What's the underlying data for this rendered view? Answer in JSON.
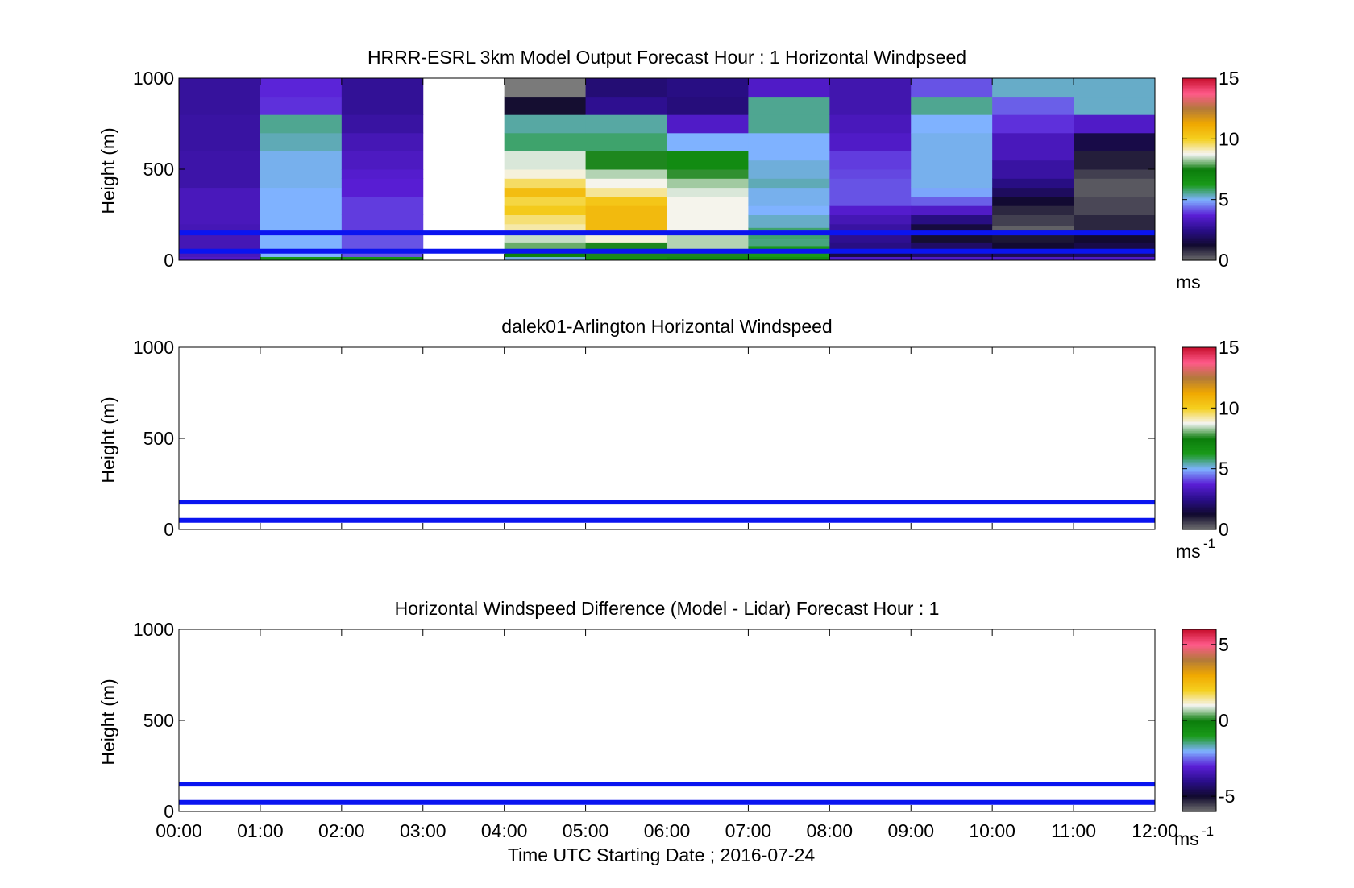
{
  "chart_data": [
    {
      "type": "heatmap",
      "title": "HRRR-ESRL 3km Model Output   Forecast Hour : 1 Horizontal Windpseed",
      "ylabel": "Height (m)",
      "ylim": [
        0,
        1000
      ],
      "yticks": [
        "0",
        "500",
        "1000"
      ],
      "xlim": [
        0,
        12
      ],
      "colorbar": {
        "ticks": [
          "0",
          "5",
          "10",
          "15"
        ],
        "vmin": 0,
        "vmax": 15,
        "unit": "ms"
      },
      "reference_lines_m": [
        150,
        50
      ],
      "cells": [
        {
          "t0": 0,
          "t1": 1,
          "h0": 0,
          "h1": 20,
          "v": 3.5
        },
        {
          "t0": 0,
          "t1": 1,
          "h0": 20,
          "h1": 50,
          "v": 3.3
        },
        {
          "t0": 0,
          "t1": 1,
          "h0": 50,
          "h1": 200,
          "v": 3.2
        },
        {
          "t0": 0,
          "t1": 1,
          "h0": 200,
          "h1": 400,
          "v": 3.3
        },
        {
          "t0": 0,
          "t1": 1,
          "h0": 400,
          "h1": 600,
          "v": 3.0
        },
        {
          "t0": 0,
          "t1": 1,
          "h0": 600,
          "h1": 800,
          "v": 2.9
        },
        {
          "t0": 0,
          "t1": 1,
          "h0": 800,
          "h1": 1000,
          "v": 2.8
        },
        {
          "t0": 1,
          "t1": 2,
          "h0": 0,
          "h1": 20,
          "v": 6.4
        },
        {
          "t0": 1,
          "t1": 2,
          "h0": 20,
          "h1": 400,
          "v": 5.0
        },
        {
          "t0": 1,
          "t1": 2,
          "h0": 400,
          "h1": 600,
          "v": 5.1
        },
        {
          "t0": 1,
          "t1": 2,
          "h0": 600,
          "h1": 700,
          "v": 5.4
        },
        {
          "t0": 1,
          "t1": 2,
          "h0": 700,
          "h1": 800,
          "v": 5.6
        },
        {
          "t0": 1,
          "t1": 2,
          "h0": 800,
          "h1": 900,
          "v": 3.9
        },
        {
          "t0": 1,
          "t1": 2,
          "h0": 900,
          "h1": 1000,
          "v": 3.8
        },
        {
          "t0": 2,
          "t1": 3,
          "h0": 0,
          "h1": 20,
          "v": 6.5
        },
        {
          "t0": 2,
          "t1": 3,
          "h0": 20,
          "h1": 150,
          "v": 4.2
        },
        {
          "t0": 2,
          "t1": 3,
          "h0": 150,
          "h1": 250,
          "v": 4.0
        },
        {
          "t0": 2,
          "t1": 3,
          "h0": 250,
          "h1": 350,
          "v": 4.0
        },
        {
          "t0": 2,
          "t1": 3,
          "h0": 350,
          "h1": 450,
          "v": 3.7
        },
        {
          "t0": 2,
          "t1": 3,
          "h0": 450,
          "h1": 500,
          "v": 3.6
        },
        {
          "t0": 2,
          "t1": 3,
          "h0": 500,
          "h1": 600,
          "v": 3.4
        },
        {
          "t0": 2,
          "t1": 3,
          "h0": 600,
          "h1": 700,
          "v": 3.2
        },
        {
          "t0": 2,
          "t1": 3,
          "h0": 700,
          "h1": 800,
          "v": 2.9
        },
        {
          "t0": 2,
          "t1": 3,
          "h0": 800,
          "h1": 1000,
          "v": 2.7
        },
        {
          "t0": 4,
          "t1": 5,
          "h0": 0,
          "h1": 20,
          "v": 5.2
        },
        {
          "t0": 4,
          "t1": 5,
          "h0": 20,
          "h1": 50,
          "v": 7.3
        },
        {
          "t0": 4,
          "t1": 5,
          "h0": 50,
          "h1": 100,
          "v": 8.0
        },
        {
          "t0": 4,
          "t1": 5,
          "h0": 100,
          "h1": 150,
          "v": 8.5
        },
        {
          "t0": 4,
          "t1": 5,
          "h0": 150,
          "h1": 200,
          "v": 9.2
        },
        {
          "t0": 4,
          "t1": 5,
          "h0": 200,
          "h1": 250,
          "v": 9.5
        },
        {
          "t0": 4,
          "t1": 5,
          "h0": 250,
          "h1": 300,
          "v": 10.2
        },
        {
          "t0": 4,
          "t1": 5,
          "h0": 300,
          "h1": 350,
          "v": 9.8
        },
        {
          "t0": 4,
          "t1": 5,
          "h0": 350,
          "h1": 400,
          "v": 10.6
        },
        {
          "t0": 4,
          "t1": 5,
          "h0": 400,
          "h1": 450,
          "v": 9.6
        },
        {
          "t0": 4,
          "t1": 5,
          "h0": 450,
          "h1": 500,
          "v": 8.9
        },
        {
          "t0": 4,
          "t1": 5,
          "h0": 500,
          "h1": 600,
          "v": 8.6
        },
        {
          "t0": 4,
          "t1": 5,
          "h0": 600,
          "h1": 700,
          "v": 5.8
        },
        {
          "t0": 4,
          "t1": 5,
          "h0": 700,
          "h1": 800,
          "v": 5.5
        },
        {
          "t0": 4,
          "t1": 5,
          "h0": 800,
          "h1": 900,
          "v": 1.2
        },
        {
          "t0": 4,
          "t1": 5,
          "h0": 900,
          "h1": 1000,
          "v": -1
        },
        {
          "t0": 5,
          "t1": 6,
          "h0": 0,
          "h1": 20,
          "v": 6.7
        },
        {
          "t0": 5,
          "t1": 6,
          "h0": 20,
          "h1": 100,
          "v": 7.6
        },
        {
          "t0": 5,
          "t1": 6,
          "h0": 100,
          "h1": 150,
          "v": 8.9
        },
        {
          "t0": 5,
          "t1": 6,
          "h0": 150,
          "h1": 300,
          "v": 10.7
        },
        {
          "t0": 5,
          "t1": 6,
          "h0": 300,
          "h1": 350,
          "v": 10.3
        },
        {
          "t0": 5,
          "t1": 6,
          "h0": 350,
          "h1": 400,
          "v": 9.3
        },
        {
          "t0": 5,
          "t1": 6,
          "h0": 400,
          "h1": 450,
          "v": 8.8
        },
        {
          "t0": 5,
          "t1": 6,
          "h0": 450,
          "h1": 500,
          "v": 8.4
        },
        {
          "t0": 5,
          "t1": 6,
          "h0": 500,
          "h1": 600,
          "v": 7.6
        },
        {
          "t0": 5,
          "t1": 6,
          "h0": 600,
          "h1": 700,
          "v": 5.8
        },
        {
          "t0": 5,
          "t1": 6,
          "h0": 700,
          "h1": 800,
          "v": 5.5
        },
        {
          "t0": 5,
          "t1": 6,
          "h0": 800,
          "h1": 900,
          "v": 2.6
        },
        {
          "t0": 5,
          "t1": 6,
          "h0": 900,
          "h1": 1000,
          "v": 2.2
        },
        {
          "t0": 6,
          "t1": 7,
          "h0": 0,
          "h1": 20,
          "v": 6.9
        },
        {
          "t0": 6,
          "t1": 7,
          "h0": 20,
          "h1": 50,
          "v": 7.6
        },
        {
          "t0": 6,
          "t1": 7,
          "h0": 50,
          "h1": 150,
          "v": 8.4
        },
        {
          "t0": 6,
          "t1": 7,
          "h0": 150,
          "h1": 350,
          "v": 8.8
        },
        {
          "t0": 6,
          "t1": 7,
          "h0": 350,
          "h1": 400,
          "v": 8.6
        },
        {
          "t0": 6,
          "t1": 7,
          "h0": 400,
          "h1": 450,
          "v": 8.3
        },
        {
          "t0": 6,
          "t1": 7,
          "h0": 450,
          "h1": 500,
          "v": 7.7
        },
        {
          "t0": 6,
          "t1": 7,
          "h0": 500,
          "h1": 600,
          "v": 6.9
        },
        {
          "t0": 6,
          "t1": 7,
          "h0": 600,
          "h1": 700,
          "v": 5.0
        },
        {
          "t0": 6,
          "t1": 7,
          "h0": 700,
          "h1": 800,
          "v": 3.5
        },
        {
          "t0": 6,
          "t1": 7,
          "h0": 800,
          "h1": 900,
          "v": 2.3
        },
        {
          "t0": 6,
          "t1": 7,
          "h0": 900,
          "h1": 1000,
          "v": 2.4
        },
        {
          "t0": 7,
          "t1": 8,
          "h0": 0,
          "h1": 20,
          "v": 6.8
        },
        {
          "t0": 7,
          "t1": 8,
          "h0": 20,
          "h1": 80,
          "v": 6.3
        },
        {
          "t0": 7,
          "t1": 8,
          "h0": 80,
          "h1": 120,
          "v": 5.7
        },
        {
          "t0": 7,
          "t1": 8,
          "h0": 120,
          "h1": 180,
          "v": 5.8
        },
        {
          "t0": 7,
          "t1": 8,
          "h0": 180,
          "h1": 250,
          "v": 5.3
        },
        {
          "t0": 7,
          "t1": 8,
          "h0": 250,
          "h1": 300,
          "v": 5.0
        },
        {
          "t0": 7,
          "t1": 8,
          "h0": 300,
          "h1": 400,
          "v": 5.1
        },
        {
          "t0": 7,
          "t1": 8,
          "h0": 400,
          "h1": 450,
          "v": 5.4
        },
        {
          "t0": 7,
          "t1": 8,
          "h0": 450,
          "h1": 550,
          "v": 5.2
        },
        {
          "t0": 7,
          "t1": 8,
          "h0": 550,
          "h1": 700,
          "v": 5.0
        },
        {
          "t0": 7,
          "t1": 8,
          "h0": 700,
          "h1": 800,
          "v": 5.6
        },
        {
          "t0": 7,
          "t1": 8,
          "h0": 800,
          "h1": 900,
          "v": 5.6
        },
        {
          "t0": 7,
          "t1": 8,
          "h0": 900,
          "h1": 1000,
          "v": 3.5
        },
        {
          "t0": 8,
          "t1": 9,
          "h0": 0,
          "h1": 20,
          "v": 3.5
        },
        {
          "t0": 8,
          "t1": 9,
          "h0": 20,
          "h1": 50,
          "v": 1.6
        },
        {
          "t0": 8,
          "t1": 9,
          "h0": 50,
          "h1": 100,
          "v": 2.4
        },
        {
          "t0": 8,
          "t1": 9,
          "h0": 100,
          "h1": 150,
          "v": 2.6
        },
        {
          "t0": 8,
          "t1": 9,
          "h0": 150,
          "h1": 200,
          "v": 2.9
        },
        {
          "t0": 8,
          "t1": 9,
          "h0": 200,
          "h1": 250,
          "v": 3.2
        },
        {
          "t0": 8,
          "t1": 9,
          "h0": 250,
          "h1": 300,
          "v": 3.6
        },
        {
          "t0": 8,
          "t1": 9,
          "h0": 300,
          "h1": 450,
          "v": 4.2
        },
        {
          "t0": 8,
          "t1": 9,
          "h0": 450,
          "h1": 500,
          "v": 4.1
        },
        {
          "t0": 8,
          "t1": 9,
          "h0": 500,
          "h1": 600,
          "v": 4.0
        },
        {
          "t0": 8,
          "t1": 9,
          "h0": 600,
          "h1": 700,
          "v": 3.5
        },
        {
          "t0": 8,
          "t1": 9,
          "h0": 700,
          "h1": 800,
          "v": 3.3
        },
        {
          "t0": 8,
          "t1": 9,
          "h0": 800,
          "h1": 1000,
          "v": 3.1
        },
        {
          "t0": 9,
          "t1": 10,
          "h0": 0,
          "h1": 20,
          "v": 3.5
        },
        {
          "t0": 9,
          "t1": 10,
          "h0": 20,
          "h1": 100,
          "v": 2.0
        },
        {
          "t0": 9,
          "t1": 10,
          "h0": 100,
          "h1": 150,
          "v": 1.2
        },
        {
          "t0": 9,
          "t1": 10,
          "h0": 150,
          "h1": 200,
          "v": 1.5
        },
        {
          "t0": 9,
          "t1": 10,
          "h0": 200,
          "h1": 250,
          "v": 2.4
        },
        {
          "t0": 9,
          "t1": 10,
          "h0": 250,
          "h1": 300,
          "v": 3.5
        },
        {
          "t0": 9,
          "t1": 10,
          "h0": 300,
          "h1": 350,
          "v": 4.3
        },
        {
          "t0": 9,
          "t1": 10,
          "h0": 350,
          "h1": 400,
          "v": 4.9
        },
        {
          "t0": 9,
          "t1": 10,
          "h0": 400,
          "h1": 600,
          "v": 5.1
        },
        {
          "t0": 9,
          "t1": 10,
          "h0": 600,
          "h1": 700,
          "v": 5.1
        },
        {
          "t0": 9,
          "t1": 10,
          "h0": 700,
          "h1": 800,
          "v": 5.0
        },
        {
          "t0": 9,
          "t1": 10,
          "h0": 800,
          "h1": 900,
          "v": 5.6
        },
        {
          "t0": 9,
          "t1": 10,
          "h0": 900,
          "h1": 1000,
          "v": 4.2
        },
        {
          "t0": 10,
          "t1": 11,
          "h0": 0,
          "h1": 20,
          "v": 3.5
        },
        {
          "t0": 10,
          "t1": 11,
          "h0": 20,
          "h1": 50,
          "v": 1.8
        },
        {
          "t0": 10,
          "t1": 11,
          "h0": 50,
          "h1": 100,
          "v": 1.3
        },
        {
          "t0": 10,
          "t1": 11,
          "h0": 100,
          "h1": 150,
          "v": 1.1
        },
        {
          "t0": 10,
          "t1": 11,
          "h0": 150,
          "h1": 170,
          "v": 0.7
        },
        {
          "t0": 10,
          "t1": 11,
          "h0": 170,
          "h1": 190,
          "v": 0.2
        },
        {
          "t0": 10,
          "t1": 11,
          "h0": 190,
          "h1": 250,
          "v": 0.6
        },
        {
          "t0": 10,
          "t1": 11,
          "h0": 250,
          "h1": 300,
          "v": 0.9
        },
        {
          "t0": 10,
          "t1": 11,
          "h0": 300,
          "h1": 350,
          "v": 1.3
        },
        {
          "t0": 10,
          "t1": 11,
          "h0": 350,
          "h1": 400,
          "v": 1.9
        },
        {
          "t0": 10,
          "t1": 11,
          "h0": 400,
          "h1": 450,
          "v": 2.4
        },
        {
          "t0": 10,
          "t1": 11,
          "h0": 450,
          "h1": 550,
          "v": 2.9
        },
        {
          "t0": 10,
          "t1": 11,
          "h0": 550,
          "h1": 700,
          "v": 3.3
        },
        {
          "t0": 10,
          "t1": 11,
          "h0": 700,
          "h1": 800,
          "v": 3.9
        },
        {
          "t0": 10,
          "t1": 11,
          "h0": 800,
          "h1": 900,
          "v": 4.3
        },
        {
          "t0": 10,
          "t1": 11,
          "h0": 900,
          "h1": 1000,
          "v": 5.3
        },
        {
          "t0": 11,
          "t1": 12,
          "h0": 0,
          "h1": 20,
          "v": 3.5
        },
        {
          "t0": 11,
          "t1": 12,
          "h0": 20,
          "h1": 50,
          "v": 1.9
        },
        {
          "t0": 11,
          "t1": 12,
          "h0": 50,
          "h1": 100,
          "v": 1.6
        },
        {
          "t0": 11,
          "t1": 12,
          "h0": 100,
          "h1": 150,
          "v": 1.3
        },
        {
          "t0": 11,
          "t1": 12,
          "h0": 150,
          "h1": 250,
          "v": 0.9
        },
        {
          "t0": 11,
          "t1": 12,
          "h0": 250,
          "h1": 350,
          "v": 0.5
        },
        {
          "t0": 11,
          "t1": 12,
          "h0": 350,
          "h1": 450,
          "v": 0.3
        },
        {
          "t0": 11,
          "t1": 12,
          "h0": 450,
          "h1": 500,
          "v": 0.6
        },
        {
          "t0": 11,
          "t1": 12,
          "h0": 500,
          "h1": 600,
          "v": 1.0
        },
        {
          "t0": 11,
          "t1": 12,
          "h0": 600,
          "h1": 700,
          "v": 1.6
        },
        {
          "t0": 11,
          "t1": 12,
          "h0": 700,
          "h1": 800,
          "v": 3.5
        },
        {
          "t0": 11,
          "t1": 12,
          "h0": 800,
          "h1": 900,
          "v": 5.3
        },
        {
          "t0": 11,
          "t1": 12,
          "h0": 900,
          "h1": 1000,
          "v": 5.3
        }
      ]
    },
    {
      "type": "heatmap",
      "title": "dalek01-Arlington  Horizontal Windspeed",
      "ylabel": "Height (m)",
      "ylim": [
        0,
        1000
      ],
      "yticks": [
        "0",
        "500",
        "1000"
      ],
      "xlim": [
        0,
        12
      ],
      "colorbar": {
        "ticks": [
          "0",
          "5",
          "10",
          "15"
        ],
        "vmin": 0,
        "vmax": 15,
        "unit": "ms",
        "unit_exp": "-1"
      },
      "reference_lines_m": [
        150,
        50
      ],
      "cells": []
    },
    {
      "type": "heatmap",
      "title": "Horizontal Windspeed Difference (Model - Lidar) Forecast Hour : 1",
      "ylabel": "Height (m)",
      "xlabel": "Time UTC  Starting Date ; 2016-07-24",
      "ylim": [
        0,
        1000
      ],
      "yticks": [
        "0",
        "500",
        "1000"
      ],
      "xlim": [
        0,
        12
      ],
      "xticks": [
        "00:00",
        "01:00",
        "02:00",
        "03:00",
        "04:00",
        "05:00",
        "06:00",
        "07:00",
        "08:00",
        "09:00",
        "10:00",
        "11:00",
        "12:00"
      ],
      "colorbar": {
        "ticks": [
          "-5",
          "0",
          "5"
        ],
        "vmin": -6,
        "vmax": 6,
        "unit": "ms",
        "unit_exp": "-1"
      },
      "reference_lines_m": [
        150,
        50
      ],
      "cells": []
    }
  ],
  "colors": {
    "reference_line": "#0a14f0",
    "colormap_stops": [
      "#707070",
      "#110a2e",
      "#2a0e8a",
      "#5a1ed6",
      "#7fb2ff",
      "#1a9a1a",
      "#0b7d0b",
      "#f5f5f5",
      "#f5d020",
      "#f0a800",
      "#b27a3a",
      "#ff5a8a",
      "#c8102e"
    ]
  }
}
